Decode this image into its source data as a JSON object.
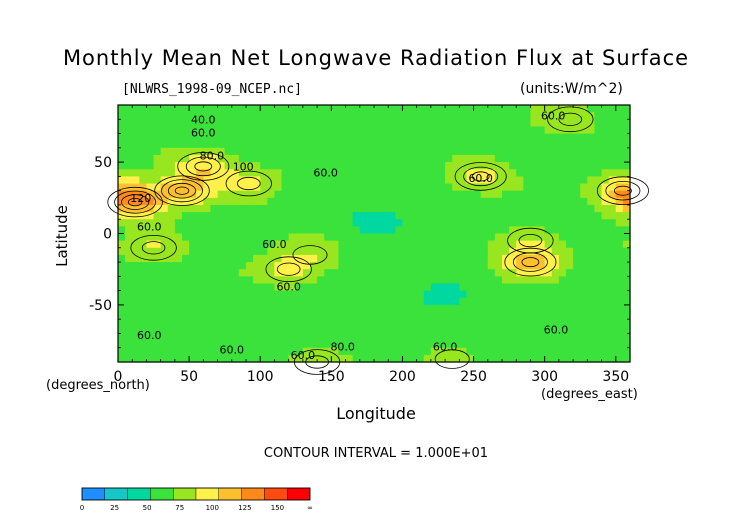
{
  "chart_data": {
    "type": "heatmap",
    "title": "Monthly Mean Net Longwave Radiation Flux at Surface",
    "subtitle_left": "[NLWRS_1998-09_NCEP.nc]",
    "subtitle_right": "(units:W/m^2)",
    "xlabel": "Longitude",
    "ylabel": "Latitude",
    "x_unit": "(degrees_east)",
    "y_unit": "(degrees_north)",
    "xlim": [
      0,
      360
    ],
    "ylim": [
      -90,
      90
    ],
    "x_ticks": [
      0,
      50,
      100,
      150,
      200,
      250,
      300,
      350
    ],
    "y_ticks": [
      50,
      0,
      -50
    ],
    "contour_interval_text": "CONTOUR INTERVAL = 1.000E+01",
    "contour_labels": [
      {
        "text": "40.0",
        "lon": 60,
        "lat": 77
      },
      {
        "text": "60.0",
        "lon": 60,
        "lat": 68
      },
      {
        "text": "80.0",
        "lon": 66,
        "lat": 52
      },
      {
        "text": "100",
        "lon": 88,
        "lat": 44
      },
      {
        "text": "120",
        "lon": 16,
        "lat": 22
      },
      {
        "text": "60.0",
        "lon": 22,
        "lat": 2
      },
      {
        "text": "60.0",
        "lon": 146,
        "lat": 40
      },
      {
        "text": "60.0",
        "lon": 255,
        "lat": 36
      },
      {
        "text": "60.0",
        "lon": 306,
        "lat": 80
      },
      {
        "text": "60.0",
        "lon": 110,
        "lat": -10
      },
      {
        "text": "60.0",
        "lon": 120,
        "lat": -40
      },
      {
        "text": "60.0",
        "lon": 308,
        "lat": -70
      },
      {
        "text": "60.0",
        "lon": 22,
        "lat": -74
      },
      {
        "text": "60.0",
        "lon": 80,
        "lat": -84
      },
      {
        "text": "60.0",
        "lon": 130,
        "lat": -88
      },
      {
        "text": "80.0",
        "lon": 158,
        "lat": -82
      },
      {
        "text": "60.0",
        "lon": 230,
        "lat": -82
      }
    ],
    "colorbar": {
      "colors": [
        "#1f8fff",
        "#14c8c8",
        "#00d8a0",
        "#3ce23c",
        "#98e620",
        "#fff04a",
        "#ffc030",
        "#ff8a1a",
        "#ff4a10",
        "#ff0000"
      ],
      "tick_labels": [
        "0",
        "25",
        "50",
        "75",
        "100",
        "125",
        "150",
        "∞"
      ]
    },
    "levels": [
      0,
      25,
      50,
      75,
      100,
      125,
      150
    ],
    "features": [
      {
        "lon": 45,
        "lat": 30,
        "value": 135
      },
      {
        "lon": 12,
        "lat": 22,
        "value": 150
      },
      {
        "lon": 60,
        "lat": 47,
        "value": 120
      },
      {
        "lon": 92,
        "lat": 35,
        "value": 105
      },
      {
        "lon": 25,
        "lat": -10,
        "value": 100
      },
      {
        "lon": 120,
        "lat": -25,
        "value": 110
      },
      {
        "lon": 135,
        "lat": -15,
        "value": 90
      },
      {
        "lon": 255,
        "lat": 40,
        "value": 115
      },
      {
        "lon": 290,
        "lat": -20,
        "value": 130
      },
      {
        "lon": 290,
        "lat": -5,
        "value": 95
      },
      {
        "lon": 355,
        "lat": 30,
        "value": 130
      },
      {
        "lon": 318,
        "lat": 80,
        "value": 95
      },
      {
        "lon": 140,
        "lat": -90,
        "value": 95
      },
      {
        "lon": 235,
        "lat": -88,
        "value": 92
      },
      {
        "lon": 180,
        "lat": 10,
        "value": 40
      },
      {
        "lon": 230,
        "lat": -45,
        "value": 40
      }
    ],
    "background_value": 65,
    "grid": false,
    "legend_position": "bottom-left"
  }
}
